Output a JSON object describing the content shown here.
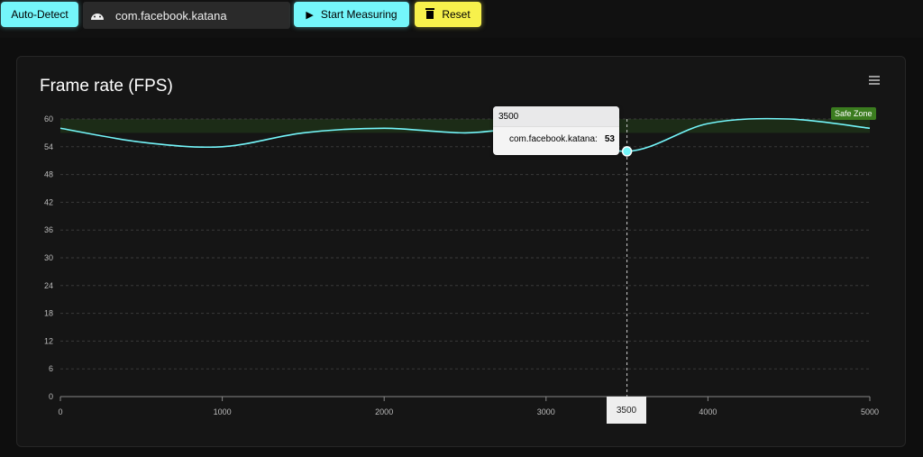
{
  "toolbar": {
    "auto_detect": "Auto-Detect",
    "package": "com.facebook.katana",
    "start": "Start Measuring",
    "reset": "Reset"
  },
  "tooltip": {
    "x": "3500",
    "series": "com.facebook.katana:",
    "value": "53"
  },
  "chart_data": {
    "type": "line",
    "title": "Frame rate (FPS)",
    "x": [
      0,
      500,
      1000,
      1500,
      2000,
      2500,
      3000,
      3500,
      4000,
      4500,
      5000
    ],
    "series": [
      {
        "name": "com.facebook.katana",
        "values": [
          58,
          55,
          54,
          57,
          58,
          57,
          58,
          53,
          59,
          60,
          58
        ],
        "color": "#74f6fa"
      }
    ],
    "xlim": [
      0,
      5000
    ],
    "ylim": [
      0,
      60
    ],
    "xticks": [
      "0",
      "1000",
      "2000",
      "3000",
      "4000",
      "5000"
    ],
    "yticks": [
      "0",
      "6",
      "12",
      "18",
      "24",
      "30",
      "36",
      "42",
      "48",
      "54",
      "60"
    ],
    "annotation": {
      "label": "Safe Zone",
      "range": [
        57,
        60
      ],
      "color": "#3b7c1f"
    },
    "crosshair_x": 3500,
    "crosshair_label": "3500"
  }
}
